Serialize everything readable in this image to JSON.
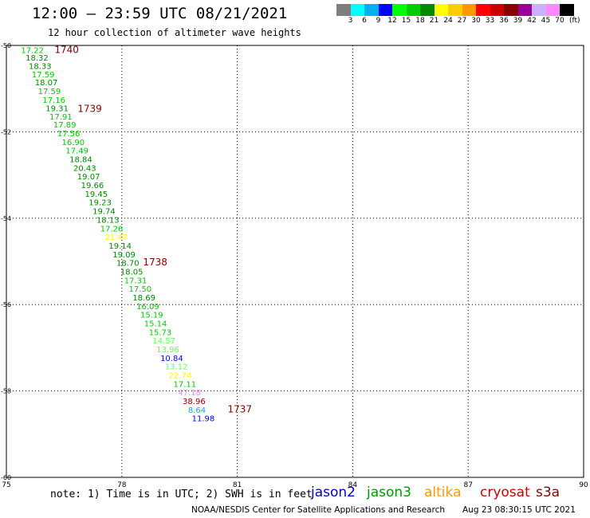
{
  "header": {
    "title": "12:00 – 23:59 UTC 08/21/2021",
    "subtitle": "12 hour collection of altimeter wave heights"
  },
  "scale": {
    "unit": "(ft)",
    "bins": [
      {
        "label": "3",
        "color": "#7f7f7f"
      },
      {
        "label": "6",
        "color": "#00ffff"
      },
      {
        "label": "9",
        "color": "#00b0f0"
      },
      {
        "label": "12",
        "color": "#0000ff"
      },
      {
        "label": "15",
        "color": "#00ff00"
      },
      {
        "label": "18",
        "color": "#00cc00"
      },
      {
        "label": "21",
        "color": "#008800"
      },
      {
        "label": "24",
        "color": "#ffff00"
      },
      {
        "label": "27",
        "color": "#ffcc00"
      },
      {
        "label": "30",
        "color": "#ff9900"
      },
      {
        "label": "33",
        "color": "#ff0000"
      },
      {
        "label": "36",
        "color": "#cc0000"
      },
      {
        "label": "39",
        "color": "#880000"
      },
      {
        "label": "42",
        "color": "#990099"
      },
      {
        "label": "45",
        "color": "#ccb0ff"
      },
      {
        "label": "70",
        "color": "#ff88ff"
      },
      {
        "label": "",
        "color": "#000000"
      }
    ]
  },
  "map": {
    "x_ticks": [
      "75",
      "78",
      "81",
      "84",
      "87",
      "90"
    ],
    "y_ticks": [
      "-50",
      "-52",
      "-54",
      "-56",
      "-58",
      "-60"
    ],
    "x_range": [
      75,
      90
    ],
    "y_range": [
      -50,
      -60
    ],
    "times": [
      {
        "label": "1740",
        "lon": 76.25,
        "lat": -50.08,
        "color": "#880000"
      },
      {
        "label": "1739",
        "lon": 76.85,
        "lat": -51.45,
        "color": "#880000"
      },
      {
        "label": "1738",
        "lon": 78.55,
        "lat": -55.0,
        "color": "#880000"
      },
      {
        "label": "1737",
        "lon": 80.75,
        "lat": -58.4,
        "color": "#880000"
      }
    ],
    "points": [
      {
        "v": "17.22",
        "lon": 75.38,
        "lat": -50.1,
        "color": "#00cc00"
      },
      {
        "v": "18.32",
        "lon": 75.5,
        "lat": -50.28,
        "color": "#008800"
      },
      {
        "v": "18.33",
        "lon": 75.58,
        "lat": -50.47,
        "color": "#008800"
      },
      {
        "v": "17.59",
        "lon": 75.66,
        "lat": -50.66,
        "color": "#00cc00"
      },
      {
        "v": "18.07",
        "lon": 75.74,
        "lat": -50.85,
        "color": "#008800"
      },
      {
        "v": "17.59",
        "lon": 75.82,
        "lat": -51.05,
        "color": "#00cc00"
      },
      {
        "v": "17.16",
        "lon": 75.94,
        "lat": -51.25,
        "color": "#00cc00"
      },
      {
        "v": "19.31",
        "lon": 76.02,
        "lat": -51.45,
        "color": "#008800"
      },
      {
        "v": "17.91",
        "lon": 76.12,
        "lat": -51.64,
        "color": "#00cc00"
      },
      {
        "v": "17.89",
        "lon": 76.22,
        "lat": -51.83,
        "color": "#00cc00"
      },
      {
        "v": "17.56",
        "lon": 76.32,
        "lat": -52.03,
        "color": "#00cc00"
      },
      {
        "v": "16.90",
        "lon": 76.44,
        "lat": -52.23,
        "color": "#00cc00"
      },
      {
        "v": "17.49",
        "lon": 76.54,
        "lat": -52.43,
        "color": "#00cc00"
      },
      {
        "v": "18.84",
        "lon": 76.64,
        "lat": -52.63,
        "color": "#008800"
      },
      {
        "v": "20.43",
        "lon": 76.74,
        "lat": -52.83,
        "color": "#008800"
      },
      {
        "v": "19.07",
        "lon": 76.84,
        "lat": -53.03,
        "color": "#008800"
      },
      {
        "v": "19.66",
        "lon": 76.94,
        "lat": -53.23,
        "color": "#008800"
      },
      {
        "v": "19.45",
        "lon": 77.04,
        "lat": -53.43,
        "color": "#008800"
      },
      {
        "v": "19.23",
        "lon": 77.14,
        "lat": -53.63,
        "color": "#008800"
      },
      {
        "v": "19.74",
        "lon": 77.24,
        "lat": -53.83,
        "color": "#008800"
      },
      {
        "v": "18.13",
        "lon": 77.34,
        "lat": -54.03,
        "color": "#008800"
      },
      {
        "v": "17.26",
        "lon": 77.44,
        "lat": -54.23,
        "color": "#00cc00"
      },
      {
        "v": "21.47",
        "lon": 77.56,
        "lat": -54.43,
        "color": "#ffff00"
      },
      {
        "v": "19.14",
        "lon": 77.66,
        "lat": -54.63,
        "color": "#008800"
      },
      {
        "v": "19.09",
        "lon": 77.76,
        "lat": -54.83,
        "color": "#008800"
      },
      {
        "v": "18.70",
        "lon": 77.86,
        "lat": -55.03,
        "color": "#008800"
      },
      {
        "v": "18.05",
        "lon": 77.96,
        "lat": -55.23,
        "color": "#008800"
      },
      {
        "v": "17.31",
        "lon": 78.06,
        "lat": -55.43,
        "color": "#00cc00"
      },
      {
        "v": "17.50",
        "lon": 78.18,
        "lat": -55.63,
        "color": "#00cc00"
      },
      {
        "v": "18.69",
        "lon": 78.28,
        "lat": -55.83,
        "color": "#008800"
      },
      {
        "v": "16.09",
        "lon": 78.38,
        "lat": -56.03,
        "color": "#00cc00"
      },
      {
        "v": "15.19",
        "lon": 78.48,
        "lat": -56.23,
        "color": "#00cc00"
      },
      {
        "v": "15.14",
        "lon": 78.58,
        "lat": -56.43,
        "color": "#00cc00"
      },
      {
        "v": "15.73",
        "lon": 78.7,
        "lat": -56.63,
        "color": "#00cc00"
      },
      {
        "v": "14.57",
        "lon": 78.8,
        "lat": -56.83,
        "color": "#66ff66"
      },
      {
        "v": "13.96",
        "lon": 78.9,
        "lat": -57.03,
        "color": "#66ff66"
      },
      {
        "v": "10.84",
        "lon": 79.0,
        "lat": -57.23,
        "color": "#0000ff"
      },
      {
        "v": "13.12",
        "lon": 79.12,
        "lat": -57.43,
        "color": "#66ff66"
      },
      {
        "v": "22.74",
        "lon": 79.22,
        "lat": -57.63,
        "color": "#ffff00"
      },
      {
        "v": "17.11",
        "lon": 79.34,
        "lat": -57.83,
        "color": "#00cc00"
      },
      {
        "v": "47.18",
        "lon": 79.46,
        "lat": -58.03,
        "color": "#ff88ff"
      },
      {
        "v": "38.96",
        "lon": 79.58,
        "lat": -58.23,
        "color": "#880000"
      },
      {
        "v": "8.64",
        "lon": 79.72,
        "lat": -58.43,
        "color": "#00b0f0"
      },
      {
        "v": "11.98",
        "lon": 79.82,
        "lat": -58.63,
        "color": "#0000ff"
      }
    ]
  },
  "note": "note: 1) Time is in UTC; 2) SWH is in feet",
  "satellites": [
    {
      "name": "jason2",
      "color": "#0000cc"
    },
    {
      "name": "jason3",
      "color": "#009900"
    },
    {
      "name": "altika",
      "color": "#ff9900"
    },
    {
      "name": "cryosat",
      "color": "#cc0000"
    },
    {
      "name": "s3a",
      "color": "#880000"
    }
  ],
  "footer": {
    "credit": "NOAA/NESDIS Center for Satellite Applications and Research",
    "timestamp": "Aug 23 08:30:15 UTC 2021"
  }
}
